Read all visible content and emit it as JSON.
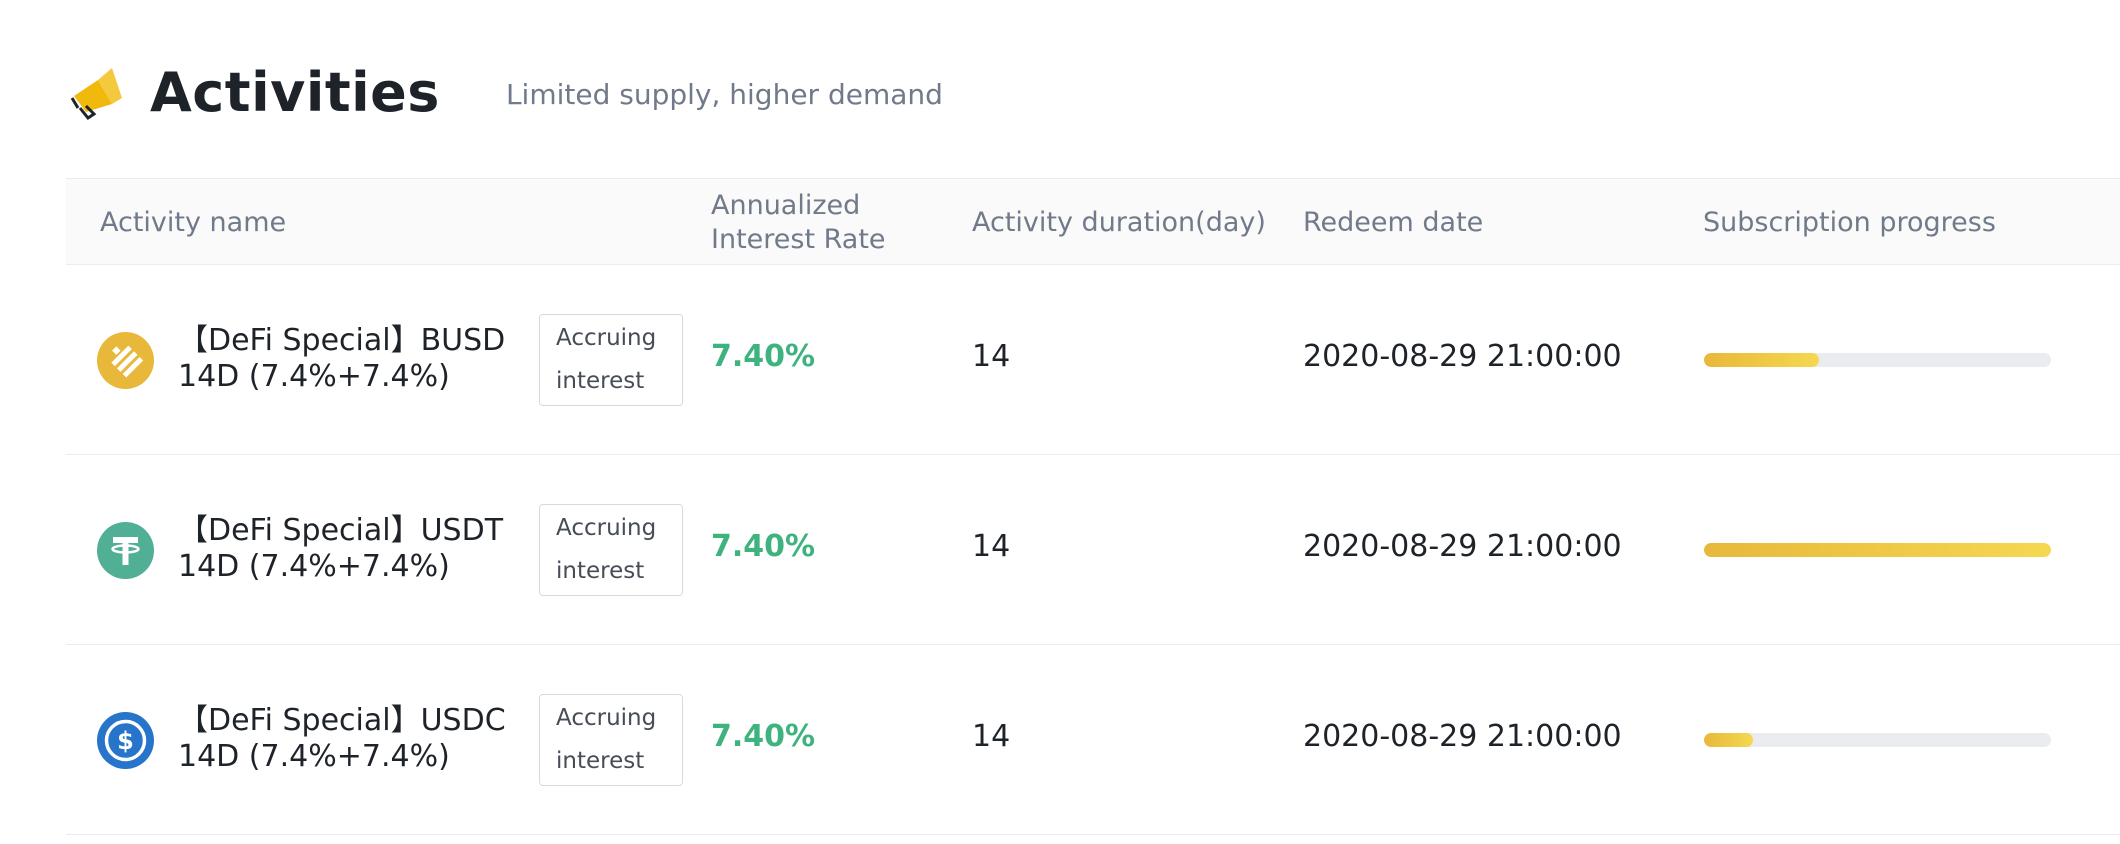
{
  "header": {
    "title": "Activities",
    "subtitle": "Limited supply, higher demand",
    "icon": "megaphone-icon",
    "accent": "#F0B90B"
  },
  "table": {
    "columns": {
      "name": "Activity name",
      "rate": "Annualized Interest Rate",
      "duration": "Activity duration(day)",
      "redeem": "Redeem date",
      "progress": "Subscription progress"
    },
    "rows": [
      {
        "coin_icon": "busd-coin-icon",
        "coin_color": "#F0B90B",
        "name_line1": "【DeFi Special】BUSD",
        "name_line2": "14D (7.4%+7.4%)",
        "badge_line1": "Accruing",
        "badge_line2": "interest",
        "rate": "7.40%",
        "duration": "14",
        "redeem_date": "2020-08-29 21:00:00",
        "progress": 0.33
      },
      {
        "coin_icon": "usdt-coin-icon",
        "coin_color": "#50AF95",
        "name_line1": "【DeFi Special】USDT",
        "name_line2": "14D (7.4%+7.4%)",
        "badge_line1": "Accruing",
        "badge_line2": "interest",
        "rate": "7.40%",
        "duration": "14",
        "redeem_date": "2020-08-29 21:00:00",
        "progress": 1.0
      },
      {
        "coin_icon": "usdc-coin-icon",
        "coin_color": "#2775CA",
        "name_line1": "【DeFi Special】USDC",
        "name_line2": "14D (7.4%+7.4%)",
        "badge_line1": "Accruing",
        "badge_line2": "interest",
        "rate": "7.40%",
        "duration": "14",
        "redeem_date": "2020-08-29 21:00:00",
        "progress": 0.14
      }
    ]
  },
  "colors": {
    "rate_green": "#3FB37F",
    "progress_start": "#E8B83A",
    "progress_end": "#F5D851",
    "track": "#EAECEF"
  }
}
